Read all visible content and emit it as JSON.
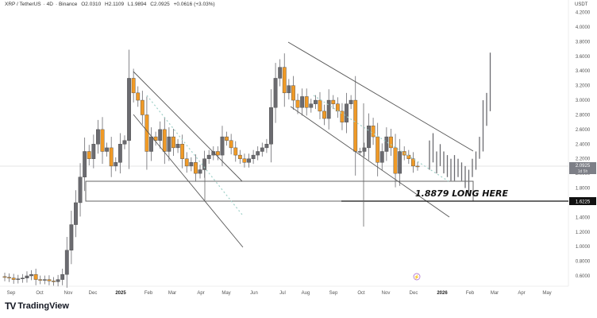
{
  "header": {
    "symbol": "XRP / TetherUS",
    "interval": "4D",
    "exchange": "Binance",
    "open": "O2.0310",
    "high": "H2.1109",
    "low": "L1.9894",
    "close": "C2.0925",
    "change": "+0.0616 (+3.03%)"
  },
  "price_axis": {
    "currency": "USDT",
    "current_price": "2.0925",
    "countdown": "1d 5h",
    "marker_price": "1.6225"
  },
  "annotation": "1.8879 LONG HERE",
  "branding": {
    "mark": "TV",
    "name": "TradingView"
  },
  "colors": {
    "bull": "#6b6b70",
    "bear": "#f09a26",
    "line": "#555555",
    "dotted": "#9fd0c8",
    "price_tag": "#7d7f87"
  },
  "chart_data": {
    "type": "candlestick",
    "title": "XRP / TetherUS · 4D · Binance",
    "xlabel": "",
    "ylabel": "USDT",
    "ylim": [
      0.5,
      4.2
    ],
    "grid": false,
    "x_ticks": [
      "Sep",
      "Oct",
      "Nov",
      "Dec",
      "2025",
      "Feb",
      "Mar",
      "Apr",
      "May",
      "Jun",
      "Jul",
      "Aug",
      "Sep",
      "Oct",
      "Nov",
      "Dec",
      "2026",
      "Feb",
      "Mar",
      "Apr",
      "May"
    ],
    "y_ticks": [
      4.2,
      4.0,
      3.8,
      3.6,
      3.4,
      3.2,
      3.0,
      2.8,
      2.6,
      2.4,
      2.2,
      2.0,
      1.8,
      1.6,
      1.4,
      1.2,
      1.0,
      0.8,
      0.6
    ],
    "last_ohlc": {
      "open": 2.031,
      "high": 2.1109,
      "low": 1.9894,
      "close": 2.0925,
      "change": 0.0616,
      "change_pct": 3.03
    },
    "horizontal_levels": [
      1.8879,
      1.6225
    ],
    "annotations": [
      "1.8879 LONG HERE"
    ],
    "approx_series": {
      "description": "approximate candle closes read from chart",
      "closes": [
        0.58,
        0.57,
        0.55,
        0.56,
        0.57,
        0.6,
        0.62,
        0.55,
        0.54,
        0.55,
        0.53,
        0.52,
        0.55,
        0.62,
        0.95,
        1.3,
        1.6,
        1.95,
        2.3,
        2.2,
        2.4,
        2.6,
        2.3,
        2.35,
        2.1,
        2.15,
        2.4,
        2.45,
        3.3,
        3.1,
        3.0,
        2.8,
        2.3,
        2.5,
        2.45,
        2.6,
        2.3,
        2.5,
        2.35,
        2.4,
        2.2,
        2.1,
        2.15,
        2.0,
        2.05,
        2.2,
        2.25,
        2.3,
        2.25,
        2.5,
        2.45,
        2.35,
        2.25,
        2.2,
        2.15,
        2.2,
        2.25,
        2.3,
        2.35,
        2.4,
        2.9,
        3.3,
        3.45,
        3.1,
        3.2,
        3.0,
        2.9,
        3.05,
        2.9,
        2.95,
        3.0,
        2.85,
        2.75,
        3.0,
        2.95,
        2.85,
        2.7,
        2.95,
        3.0,
        2.3,
        2.3,
        2.35,
        2.65,
        2.5,
        2.15,
        2.3,
        2.5,
        2.35,
        2.0,
        2.3,
        2.25,
        2.2,
        2.1,
        2.09
      ]
    },
    "projection_bars": "gray projection bars after Dec rising toward ~3.65 by Mar 2026"
  }
}
